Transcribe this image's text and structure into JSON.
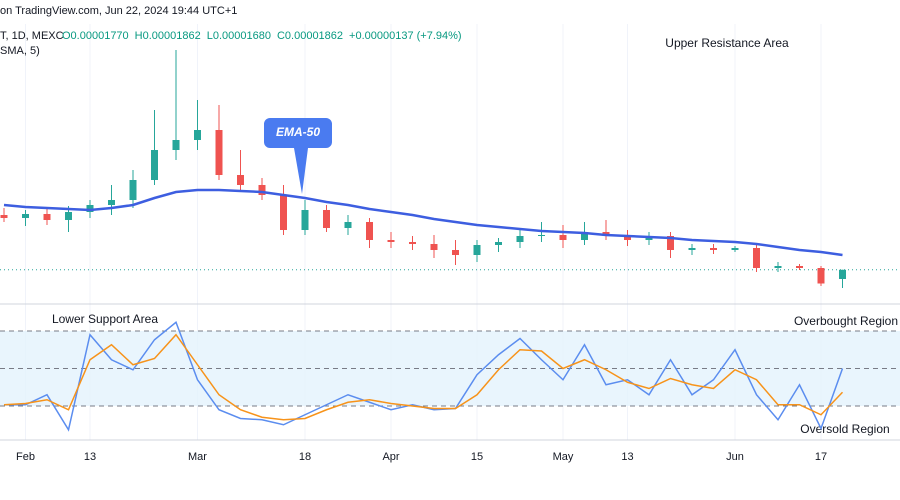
{
  "header": {
    "source": "on TradingView.com, Jun 22, 2024 19:44 UTC+1",
    "symbol": "T, 1D, MEXC",
    "ohlc": [
      "O0.00001770",
      "H0.00001862",
      "L0.00001680",
      "C0.00001862",
      "+0.00000137 (+7.94%)"
    ],
    "indicator": "SMA, 5)"
  },
  "chart_data": [
    {
      "type": "candlestick",
      "categories": [
        null,
        "Feb",
        null,
        null,
        "13",
        null,
        null,
        null,
        null,
        "Mar",
        null,
        null,
        null,
        null,
        "18",
        null,
        null,
        null,
        "Apr",
        null,
        null,
        null,
        "15",
        null,
        null,
        null,
        "May",
        null,
        null,
        "13",
        null,
        null,
        null,
        null,
        "Jun",
        null,
        null,
        null,
        "17",
        null
      ],
      "open": [
        2.41e-05,
        2.38e-05,
        2.42e-05,
        2.36e-05,
        2.44e-05,
        2.51e-05,
        2.56e-05,
        2.76e-05,
        3.06e-05,
        3.16e-05,
        3.26e-05,
        2.81e-05,
        2.71e-05,
        2.61e-05,
        2.26e-05,
        2.46e-05,
        2.28e-05,
        2.34e-05,
        2.16e-05,
        2.14e-05,
        2.12e-05,
        2.06e-05,
        2.01e-05,
        2.11e-05,
        2.14e-05,
        2.2e-05,
        2.21e-05,
        2.16e-05,
        2.24e-05,
        2.2e-05,
        2.16e-05,
        2.2e-05,
        2.06e-05,
        2.08e-05,
        2.06e-05,
        2.08e-05,
        1.88e-05,
        1.9e-05,
        1.88e-05,
        1.77e-05
      ],
      "high": [
        2.48e-05,
        2.46e-05,
        2.48e-05,
        2.5e-05,
        2.56e-05,
        2.71e-05,
        2.86e-05,
        3.46e-05,
        4.06e-05,
        3.56e-05,
        3.51e-05,
        3.06e-05,
        2.78e-05,
        2.71e-05,
        2.56e-05,
        2.51e-05,
        2.41e-05,
        2.38e-05,
        2.24e-05,
        2.2e-05,
        2.21e-05,
        2.16e-05,
        2.16e-05,
        2.18e-05,
        2.28e-05,
        2.34e-05,
        2.31e-05,
        2.34e-05,
        2.36e-05,
        2.26e-05,
        2.24e-05,
        2.24e-05,
        2.12e-05,
        2.12e-05,
        2.1e-05,
        2.11e-05,
        1.94e-05,
        1.92e-05,
        1.9e-05,
        1.862e-05
      ],
      "low": [
        2.34e-05,
        2.3e-05,
        2.31e-05,
        2.24e-05,
        2.38e-05,
        2.41e-05,
        2.48e-05,
        2.71e-05,
        2.96e-05,
        3.06e-05,
        2.76e-05,
        2.64e-05,
        2.56e-05,
        2.21e-05,
        2.21e-05,
        2.24e-05,
        2.21e-05,
        2.08e-05,
        2.08e-05,
        2.06e-05,
        1.98e-05,
        1.91e-05,
        1.94e-05,
        2.04e-05,
        2.08e-05,
        2.14e-05,
        2.08e-05,
        2.11e-05,
        2.16e-05,
        2.1e-05,
        2.11e-05,
        1.98e-05,
        2.01e-05,
        2.02e-05,
        2.04e-05,
        1.84e-05,
        1.84e-05,
        1.86e-05,
        1.7e-05,
        1.68e-05
      ],
      "close": [
        2.38e-05,
        2.42e-05,
        2.36e-05,
        2.44e-05,
        2.51e-05,
        2.56e-05,
        2.76e-05,
        3.06e-05,
        3.16e-05,
        3.26e-05,
        2.81e-05,
        2.71e-05,
        2.61e-05,
        2.26e-05,
        2.46e-05,
        2.28e-05,
        2.34e-05,
        2.16e-05,
        2.14e-05,
        2.12e-05,
        2.06e-05,
        2.01e-05,
        2.11e-05,
        2.14e-05,
        2.2e-05,
        2.21e-05,
        2.16e-05,
        2.24e-05,
        2.2e-05,
        2.16e-05,
        2.2e-05,
        2.06e-05,
        2.08e-05,
        2.06e-05,
        2.08e-05,
        1.88e-05,
        1.9e-05,
        1.88e-05,
        1.725e-05,
        1.862e-05
      ],
      "up_color": "#26a69a",
      "down_color": "#ef5350",
      "series": [
        {
          "name": "EMA-50",
          "color": "#3d5ee0",
          "values": [
            2.51e-05,
            2.49e-05,
            2.48e-05,
            2.47e-05,
            2.46e-05,
            2.48e-05,
            2.51e-05,
            2.58e-05,
            2.64e-05,
            2.66e-05,
            2.66e-05,
            2.65e-05,
            2.64e-05,
            2.61e-05,
            2.58e-05,
            2.54e-05,
            2.51e-05,
            2.47e-05,
            2.44e-05,
            2.41e-05,
            2.37e-05,
            2.34e-05,
            2.31e-05,
            2.29e-05,
            2.27e-05,
            2.25e-05,
            2.24e-05,
            2.23e-05,
            2.21e-05,
            2.2e-05,
            2.19e-05,
            2.18e-05,
            2.16e-05,
            2.15e-05,
            2.14e-05,
            2.12e-05,
            2.09e-05,
            2.06e-05,
            2.04e-05,
            2.01e-05
          ]
        }
      ],
      "ylim": [
        1.56e-05,
        4.26e-05
      ],
      "annotations": [
        "Upper Resistance Area"
      ]
    },
    {
      "type": "line",
      "series": [
        {
          "color": "#5b8def",
          "values": [
            21,
            21,
            29,
            1,
            77,
            57,
            49,
            73,
            87,
            41,
            17,
            10,
            9,
            5,
            13,
            21,
            29,
            23,
            17,
            21,
            17,
            18,
            45,
            61,
            74,
            57,
            41,
            69,
            37,
            41,
            29,
            57,
            29,
            41,
            65,
            29,
            9,
            37,
            2,
            50
          ]
        },
        {
          "color": "#f7931a",
          "values": [
            21,
            22,
            25,
            17,
            57,
            69,
            53,
            58,
            77,
            53,
            29,
            17,
            11,
            9,
            10,
            17,
            23,
            25,
            22,
            20,
            18,
            18,
            29,
            49,
            65,
            64,
            50,
            57,
            49,
            39,
            34,
            42,
            37,
            34,
            49,
            41,
            21,
            21,
            13,
            31
          ]
        }
      ],
      "ylim": [
        -7.2,
        90.4
      ],
      "levels": [
        80,
        50,
        20
      ],
      "band_color": "#e3f2fd",
      "annotations": [
        "Lower Support Area",
        "Overbought Region",
        "Oversold Region"
      ]
    }
  ]
}
